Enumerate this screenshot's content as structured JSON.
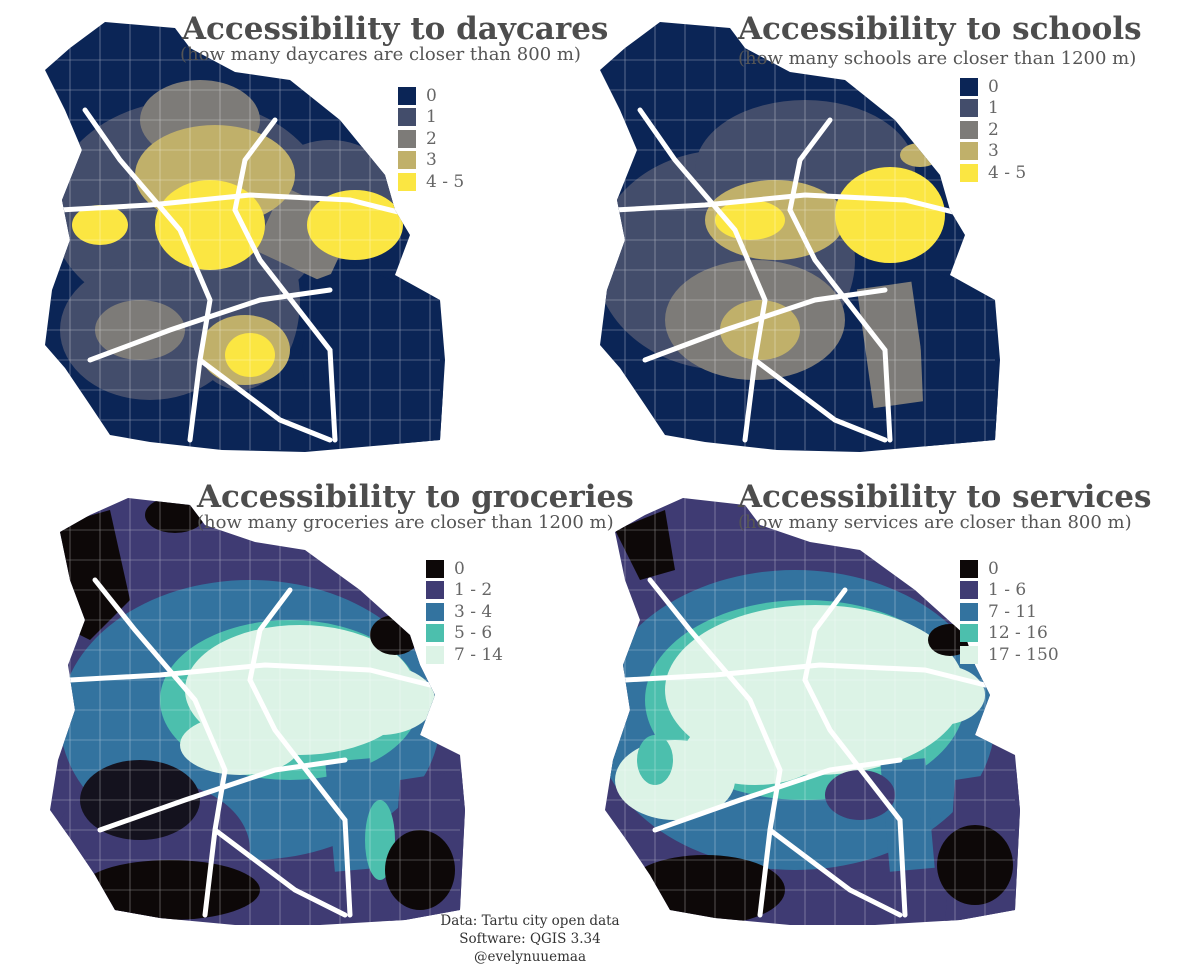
{
  "panels": [
    {
      "id": "daycares",
      "title": "Accessibility to daycares",
      "subtitle": "(how many daycares are closer than 800 m)",
      "legend": [
        {
          "label": "0",
          "color": "#0b2556"
        },
        {
          "label": "1",
          "color": "#434d6b"
        },
        {
          "label": "2",
          "color": "#7d7b78"
        },
        {
          "label": "3",
          "color": "#c0b06a"
        },
        {
          "label": "4 - 5",
          "color": "#fbe642"
        }
      ]
    },
    {
      "id": "schools",
      "title": "Accessibility to schools",
      "subtitle": "(how many schools are closer than 1200 m)",
      "legend": [
        {
          "label": "0",
          "color": "#0b2556"
        },
        {
          "label": "1",
          "color": "#434d6b"
        },
        {
          "label": "2",
          "color": "#7d7b78"
        },
        {
          "label": "3",
          "color": "#c0b06a"
        },
        {
          "label": "4 - 5",
          "color": "#fbe642"
        }
      ]
    },
    {
      "id": "groceries",
      "title": "Accessibility to groceries",
      "subtitle": "(how many groceries are closer than 1200 m)",
      "legend": [
        {
          "label": "0",
          "color": "#0d0808"
        },
        {
          "label": "1 - 2",
          "color": "#3f3b73"
        },
        {
          "label": "3 - 4",
          "color": "#33739f"
        },
        {
          "label": "5 - 6",
          "color": "#4cbfad"
        },
        {
          "label": "7 - 14",
          "color": "#dcf3e6"
        }
      ]
    },
    {
      "id": "services",
      "title": "Accessibility to services",
      "subtitle": "(how many services are closer than 800 m)",
      "legend": [
        {
          "label": "0",
          "color": "#0d0808"
        },
        {
          "label": "1 - 6",
          "color": "#3f3b73"
        },
        {
          "label": "7 - 11",
          "color": "#33739f"
        },
        {
          "label": "12 - 16",
          "color": "#4cbfad"
        },
        {
          "label": "17 - 150",
          "color": "#dcf3e6"
        }
      ]
    }
  ],
  "credits": {
    "line1": "Data: Tartu city open data",
    "line2": "Software: QGIS 3.34",
    "line3": "@evelynuuemaa"
  }
}
